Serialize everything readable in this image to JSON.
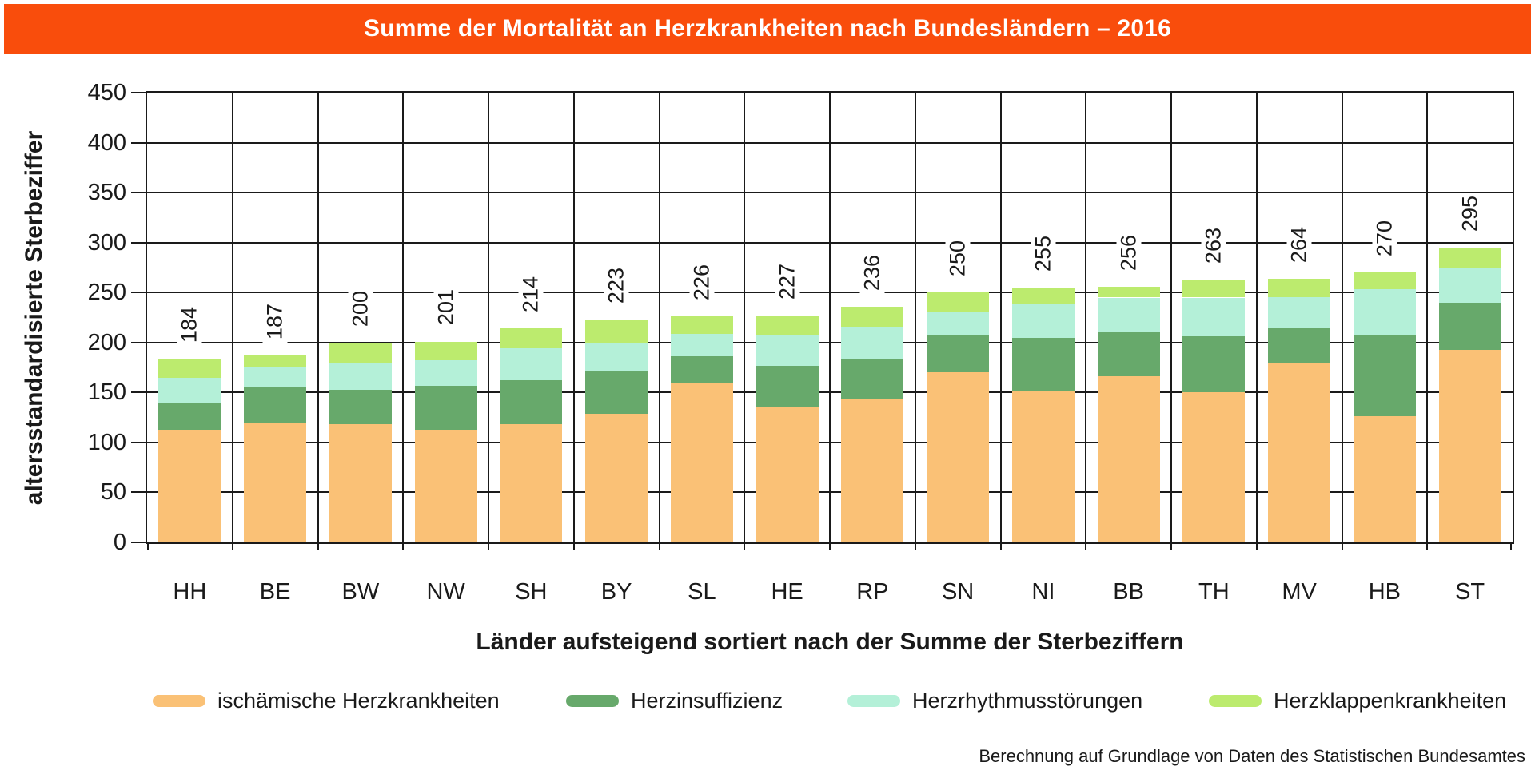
{
  "header": {
    "title": "Summe der Mortalität an Herzkrankheiten nach Bundesländern – 2016",
    "bg_color": "#F94D0C"
  },
  "chart_data": {
    "type": "bar",
    "stacked": true,
    "title": "Summe der Mortalität an Herzkrankheiten nach Bundesländern – 2016",
    "categories": [
      "HH",
      "BE",
      "BW",
      "NW",
      "SH",
      "BY",
      "SL",
      "HE",
      "RP",
      "SN",
      "NI",
      "BB",
      "TH",
      "MV",
      "HB",
      "ST"
    ],
    "totals": [
      184,
      187,
      200,
      201,
      214,
      223,
      226,
      227,
      236,
      250,
      255,
      256,
      263,
      264,
      270,
      295
    ],
    "series": [
      {
        "name": "ischämische Herzkrankheiten",
        "color": "#FAC176",
        "values": [
          113,
          120,
          118,
          113,
          118,
          129,
          160,
          135,
          143,
          170,
          152,
          166,
          150,
          179,
          126,
          193
        ]
      },
      {
        "name": "Herzinsuffizienz",
        "color": "#67A96B",
        "values": [
          26,
          35,
          35,
          44,
          44,
          42,
          26,
          42,
          41,
          37,
          53,
          44,
          56,
          35,
          81,
          47
        ]
      },
      {
        "name": "Herzrhythmusstörungen",
        "color": "#B4F0D8",
        "values": [
          26,
          21,
          27,
          25,
          32,
          29,
          23,
          30,
          32,
          24,
          33,
          35,
          39,
          31,
          46,
          35
        ]
      },
      {
        "name": "Herzklappenkrankheiten",
        "color": "#BCEB6E",
        "values": [
          19,
          11,
          20,
          19,
          20,
          23,
          17,
          20,
          20,
          19,
          17,
          11,
          18,
          19,
          17,
          20
        ]
      }
    ],
    "ylabel": "altersstandardisierte Sterbeziffer",
    "xlabel": "Länder aufsteigend sortiert nach der Summe der Sterbeziffern",
    "ylim": [
      0,
      450
    ],
    "yticks": [
      0,
      50,
      100,
      150,
      200,
      250,
      300,
      350,
      400,
      450
    ],
    "grid": true,
    "grid_color": "#1A1A1A",
    "legend_position": "bottom"
  },
  "footer": {
    "source": "Berechnung auf Grundlage von Daten des Statistischen Bundesamtes"
  }
}
